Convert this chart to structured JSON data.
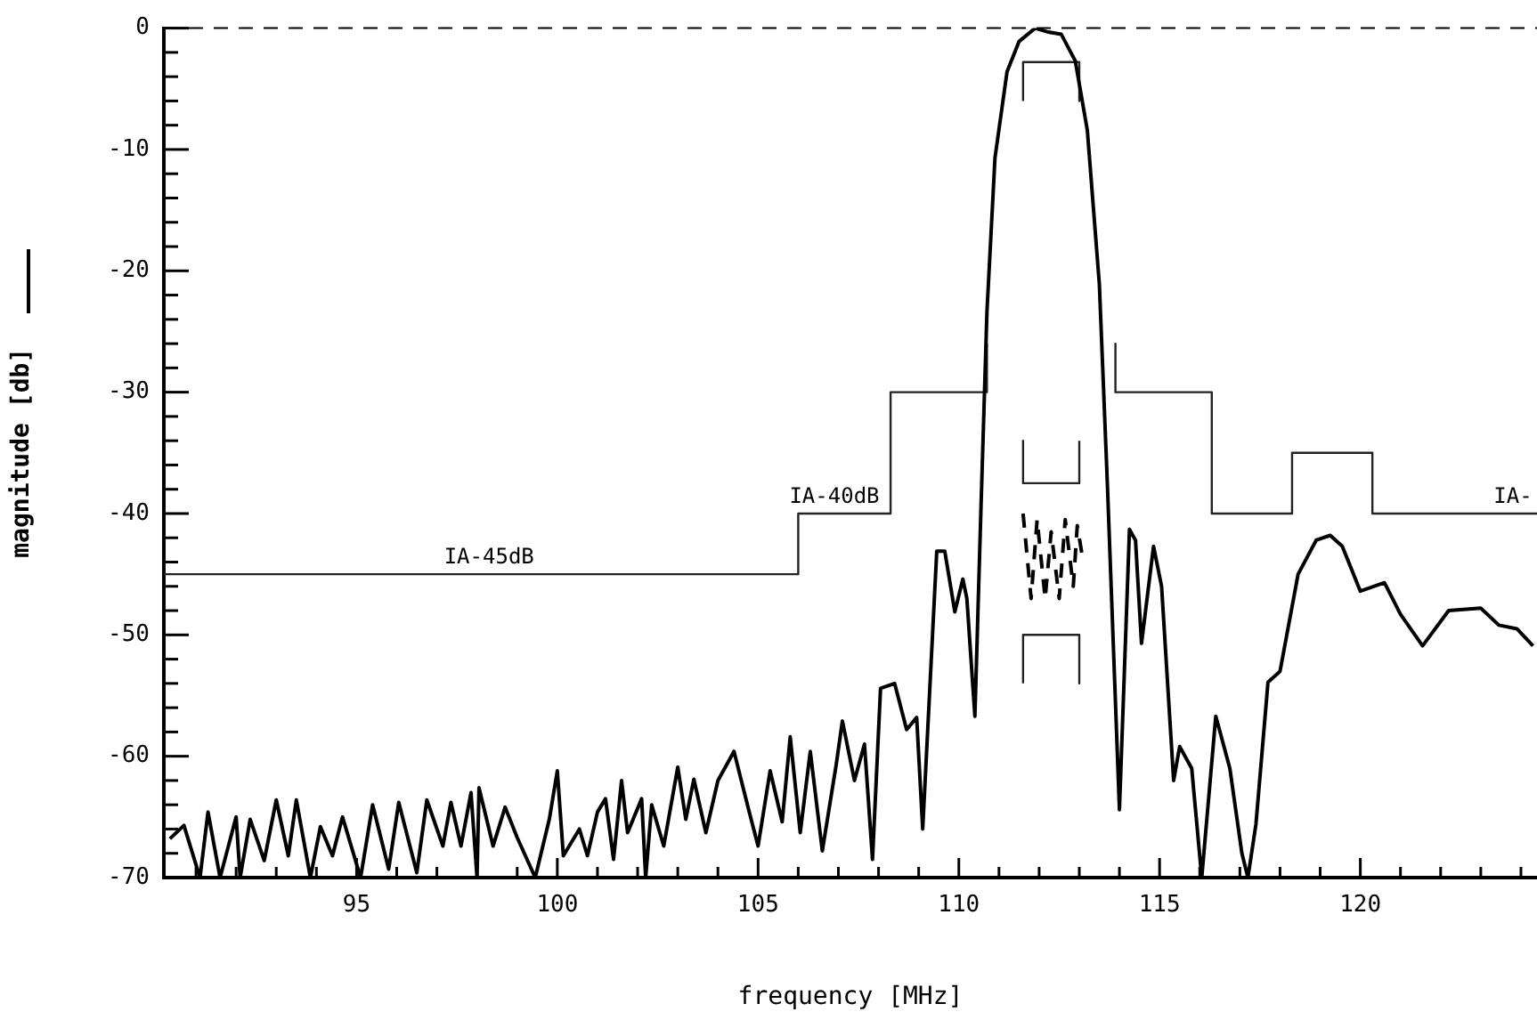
{
  "chart_data": {
    "type": "line",
    "xlabel": "frequency [MHz]",
    "ylabel": "magnitude [db]",
    "xlim": [
      90.2,
      124.4
    ],
    "ylim": [
      -70,
      0
    ],
    "xticks": [
      {
        "value": 91,
        "label": null
      },
      {
        "value": 92,
        "label": null
      },
      {
        "value": 93,
        "label": null
      },
      {
        "value": 94,
        "label": null
      },
      95,
      {
        "value": 96,
        "label": null
      },
      {
        "value": 97,
        "label": null
      },
      {
        "value": 98,
        "label": null
      },
      {
        "value": 99,
        "label": null
      },
      100,
      {
        "value": 101,
        "label": null
      },
      {
        "value": 102,
        "label": null
      },
      {
        "value": 103,
        "label": null
      },
      {
        "value": 104,
        "label": null
      },
      105,
      {
        "value": 106,
        "label": null
      },
      {
        "value": 107,
        "label": null
      },
      {
        "value": 108,
        "label": null
      },
      {
        "value": 109,
        "label": null
      },
      110,
      {
        "value": 111,
        "label": null
      },
      {
        "value": 112,
        "label": null
      },
      {
        "value": 113,
        "label": null
      },
      {
        "value": 114,
        "label": null
      },
      115,
      {
        "value": 116,
        "label": null
      },
      {
        "value": 117,
        "label": null
      },
      {
        "value": 118,
        "label": null
      },
      {
        "value": 119,
        "label": null
      },
      120,
      {
        "value": 121,
        "label": null
      },
      {
        "value": 122,
        "label": null
      },
      {
        "value": 123,
        "label": null
      },
      {
        "value": 124,
        "label": null
      }
    ],
    "yticks": [
      -70,
      {
        "value": -68,
        "label": null
      },
      {
        "value": -66,
        "label": null
      },
      {
        "value": -64,
        "label": null
      },
      {
        "value": -62,
        "label": null
      },
      -60,
      {
        "value": -58,
        "label": null
      },
      {
        "value": -56,
        "label": null
      },
      {
        "value": -54,
        "label": null
      },
      {
        "value": -52,
        "label": null
      },
      -50,
      {
        "value": -48,
        "label": null
      },
      {
        "value": -46,
        "label": null
      },
      {
        "value": -44,
        "label": null
      },
      {
        "value": -42,
        "label": null
      },
      -40,
      {
        "value": -38,
        "label": null
      },
      {
        "value": -36,
        "label": null
      },
      {
        "value": -34,
        "label": null
      },
      {
        "value": -32,
        "label": null
      },
      -30,
      {
        "value": -28,
        "label": null
      },
      {
        "value": -26,
        "label": null
      },
      {
        "value": -24,
        "label": null
      },
      {
        "value": -22,
        "label": null
      },
      -20,
      {
        "value": -18,
        "label": null
      },
      {
        "value": -16,
        "label": null
      },
      {
        "value": -14,
        "label": null
      },
      {
        "value": -12,
        "label": null
      },
      -10,
      {
        "value": -8,
        "label": null
      },
      {
        "value": -6,
        "label": null
      },
      {
        "value": -4,
        "label": null
      },
      {
        "value": -2,
        "label": null
      },
      0
    ],
    "grid": false,
    "legend": false,
    "marker": "none",
    "series": [
      {
        "color": "#000000",
        "line_style": "solid",
        "x": [
          90.35,
          90.7,
          91.1,
          91.3,
          91.6,
          92.0,
          92.1,
          92.35,
          92.7,
          93.0,
          93.3,
          93.5,
          93.85,
          94.1,
          94.4,
          94.65,
          95.1,
          95.4,
          95.8,
          96.05,
          96.5,
          96.75,
          97.15,
          97.35,
          97.6,
          97.85,
          98.0,
          98.05,
          98.4,
          98.7,
          99.0,
          99.45,
          99.8,
          100.0,
          100.15,
          100.55,
          100.75,
          101.0,
          101.2,
          101.4,
          101.6,
          101.75,
          102.1,
          102.2,
          102.35,
          102.65,
          103.0,
          103.2,
          103.4,
          103.7,
          104.0,
          104.4,
          104.75,
          105.0,
          105.3,
          105.6,
          105.8,
          106.05,
          106.3,
          106.6,
          106.95,
          107.1,
          107.4,
          107.65,
          107.85,
          108.05,
          108.4,
          108.7,
          108.95,
          109.1,
          109.45,
          109.65,
          109.9,
          110.1,
          110.2,
          110.4,
          110.55,
          110.7,
          110.9,
          111.2,
          111.5,
          111.9,
          112.2,
          112.55,
          112.9,
          113.2,
          113.5,
          113.7,
          114.0,
          114.25,
          114.4,
          114.55,
          114.85,
          115.05,
          115.35,
          115.5,
          115.8,
          116.05,
          116.4,
          116.75,
          117.05,
          117.2,
          117.4,
          117.7,
          118.0,
          118.45,
          118.9,
          119.25,
          119.55,
          120.0,
          120.6,
          121.0,
          121.55,
          122.2,
          123.0,
          123.45,
          123.9,
          124.3
        ],
        "values": [
          -66.8,
          -65.7,
          -70,
          -64.6,
          -70,
          -65,
          -70,
          -65.2,
          -68.6,
          -63.6,
          -68.2,
          -63.6,
          -70,
          -65.8,
          -68.2,
          -65,
          -70,
          -64,
          -69.3,
          -63.8,
          -69.6,
          -63.6,
          -67.4,
          -63.8,
          -67.4,
          -63,
          -70,
          -62.6,
          -67.4,
          -64.2,
          -66.7,
          -70,
          -65.2,
          -61.2,
          -68.2,
          -66,
          -68.2,
          -64.6,
          -63.5,
          -68.5,
          -62,
          -66.3,
          -63.5,
          -70,
          -64,
          -67.4,
          -60.9,
          -65.2,
          -61.9,
          -66.3,
          -62,
          -59.6,
          -64.2,
          -67.4,
          -61.2,
          -65.4,
          -58.4,
          -66.3,
          -59.6,
          -67.8,
          -60.6,
          -57.1,
          -62,
          -59,
          -68.5,
          -54.4,
          -54,
          -57.8,
          -56.8,
          -66,
          -43.1,
          -43.1,
          -48.1,
          -45.4,
          -47,
          -56.7,
          -39.7,
          -23.4,
          -10.7,
          -3.6,
          -1.1,
          0,
          -0.3,
          -0.5,
          -2.7,
          -8.4,
          -21.1,
          -37.6,
          -64.4,
          -41.3,
          -42.2,
          -50.7,
          -42.7,
          -46,
          -62,
          -59.2,
          -61,
          -70,
          -56.7,
          -61,
          -68,
          -70,
          -65.6,
          -53.9,
          -53,
          -45,
          -42.2,
          -41.8,
          -42.7,
          -46.4,
          -45.7,
          -48.3,
          -50.9,
          -48,
          -47.8,
          -49.2,
          -49.5,
          -50.9
        ]
      },
      {
        "color": "#222222",
        "line_style": "solid",
        "x": [
          90.2,
          106,
          106,
          108.3,
          108.3,
          110.7,
          110.7
        ],
        "values": [
          -45,
          -45,
          -40,
          -40,
          -30,
          -30,
          -26
        ]
      },
      {
        "color": "#222222",
        "line_style": "solid",
        "x": [
          113.9,
          113.9,
          116.3,
          116.3,
          118.3,
          118.3,
          120.3,
          120.3,
          124.4
        ],
        "values": [
          -26,
          -30,
          -30,
          -40,
          -40,
          -35,
          -35,
          -40,
          -40
        ]
      },
      {
        "color": "#222222",
        "line_style": "solid",
        "x": [
          111.6,
          111.6,
          113.0,
          113.0
        ],
        "values": [
          -6,
          -2.8,
          -2.8,
          -6
        ]
      },
      {
        "color": "#222222",
        "line_style": "solid",
        "x": [
          111.6,
          111.6,
          113.0,
          113.0
        ],
        "values": [
          -34,
          -37.5,
          -37.5,
          -34
        ]
      },
      {
        "color": "#222222",
        "line_style": "solid",
        "x": [
          111.6,
          111.6,
          113.0,
          113.0
        ],
        "values": [
          -54,
          -50,
          -50,
          -54
        ]
      },
      {
        "color": "#000000",
        "line_style": "dashed",
        "x": [
          111.6,
          111.8,
          111.95,
          112.15,
          112.3,
          112.5,
          112.65,
          112.85,
          112.95,
          113.1
        ],
        "values": [
          -40,
          -47,
          -40.5,
          -47,
          -41.5,
          -47,
          -40.5,
          -46,
          -41,
          -44
        ]
      }
    ],
    "ref_lines": [
      {
        "axis": "y",
        "value": 0,
        "line_style": "dashed",
        "color": "#000000"
      }
    ],
    "annotations": [
      {
        "text": "IA-45dB",
        "x": 98.3,
        "y": -45
      },
      {
        "text": "IA-40dB",
        "x": 106.9,
        "y": -40
      },
      {
        "text": "IA-",
        "x": 123.8,
        "y": -40
      }
    ]
  }
}
